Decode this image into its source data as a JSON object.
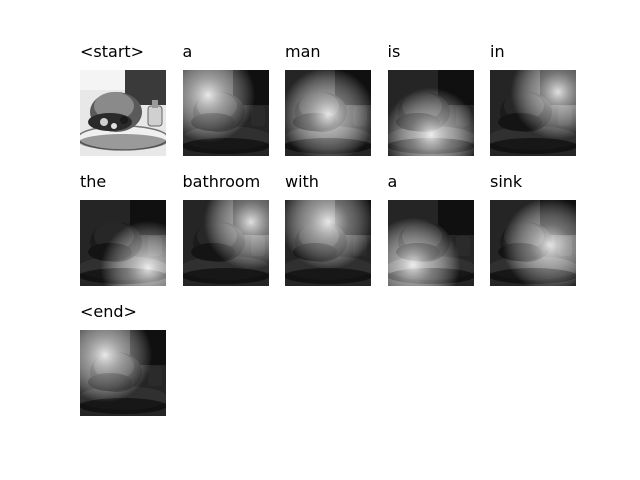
{
  "caption_tokens": [
    {
      "word": "<start>",
      "attention": "none"
    },
    {
      "word": "a",
      "attention": "upper-left"
    },
    {
      "word": "man",
      "attention": "center"
    },
    {
      "word": "is",
      "attention": "lower-center"
    },
    {
      "word": "in",
      "attention": "upper-right"
    },
    {
      "word": "the",
      "attention": "lower-right"
    },
    {
      "word": "bathroom",
      "attention": "upper-right"
    },
    {
      "word": "with",
      "attention": "upper-center"
    },
    {
      "word": "a",
      "attention": "lower-left"
    },
    {
      "word": "sink",
      "attention": "center-right"
    },
    {
      "word": "<end>",
      "attention": "upper-left"
    }
  ]
}
